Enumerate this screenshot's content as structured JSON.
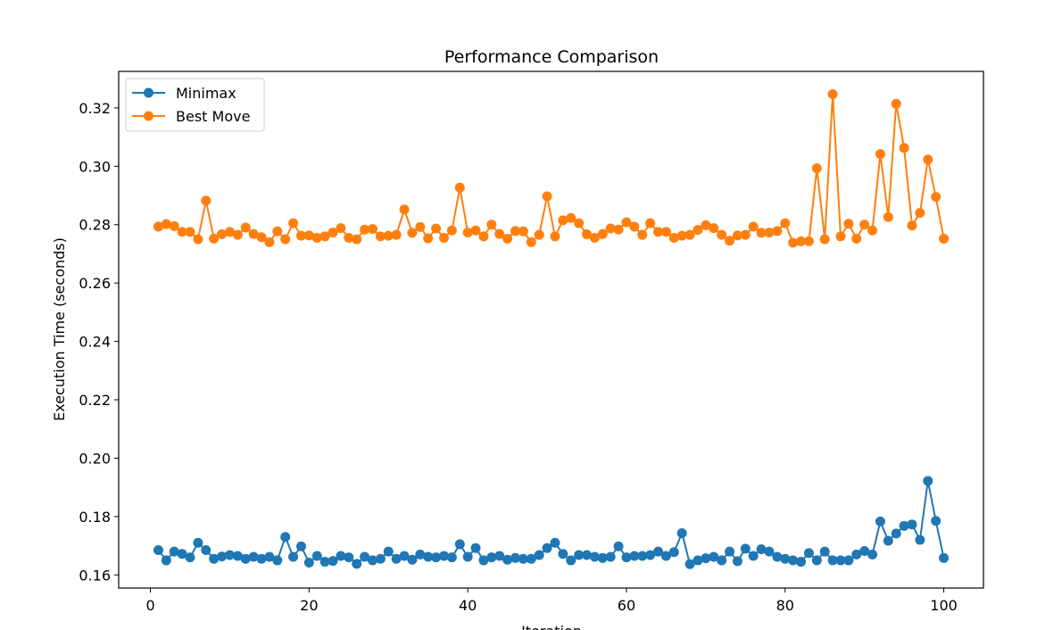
{
  "chart_data": {
    "type": "line",
    "title": "Performance Comparison",
    "xlabel": "Iteration",
    "ylabel": "Execution Time (seconds)",
    "xlim": [
      -4,
      105
    ],
    "ylim": [
      0.1555,
      0.3325
    ],
    "xticks": [
      0,
      20,
      40,
      60,
      80,
      100
    ],
    "yticks": [
      0.16,
      0.18,
      0.2,
      0.22,
      0.24,
      0.26,
      0.28,
      0.3,
      0.32
    ],
    "ytick_labels": [
      "0.16",
      "0.18",
      "0.20",
      "0.22",
      "0.24",
      "0.26",
      "0.28",
      "0.30",
      "0.32"
    ],
    "grid": false,
    "legend_position": "top-left",
    "x": [
      1,
      2,
      3,
      4,
      5,
      6,
      7,
      8,
      9,
      10,
      11,
      12,
      13,
      14,
      15,
      16,
      17,
      18,
      19,
      20,
      21,
      22,
      23,
      24,
      25,
      26,
      27,
      28,
      29,
      30,
      31,
      32,
      33,
      34,
      35,
      36,
      37,
      38,
      39,
      40,
      41,
      42,
      43,
      44,
      45,
      46,
      47,
      48,
      49,
      50,
      51,
      52,
      53,
      54,
      55,
      56,
      57,
      58,
      59,
      60,
      61,
      62,
      63,
      64,
      65,
      66,
      67,
      68,
      69,
      70,
      71,
      72,
      73,
      74,
      75,
      76,
      77,
      78,
      79,
      80,
      81,
      82,
      83,
      84,
      85,
      86,
      87,
      88,
      89,
      90,
      91,
      92,
      93,
      94,
      95,
      96,
      97,
      98,
      99,
      100
    ],
    "series": [
      {
        "name": "Minimax",
        "color": "#1f77b4",
        "values": [
          0.1685,
          0.165,
          0.168,
          0.1672,
          0.166,
          0.171,
          0.1685,
          0.1655,
          0.1663,
          0.1668,
          0.1665,
          0.1655,
          0.1662,
          0.1655,
          0.1662,
          0.165,
          0.173,
          0.1662,
          0.1698,
          0.1642,
          0.1665,
          0.1645,
          0.1648,
          0.1665,
          0.166,
          0.1638,
          0.1662,
          0.165,
          0.1655,
          0.168,
          0.1655,
          0.1665,
          0.1652,
          0.167,
          0.1662,
          0.166,
          0.1665,
          0.166,
          0.1705,
          0.1662,
          0.1692,
          0.165,
          0.166,
          0.1665,
          0.1652,
          0.1658,
          0.1655,
          0.1655,
          0.1668,
          0.1692,
          0.171,
          0.1672,
          0.165,
          0.1668,
          0.1668,
          0.1662,
          0.1658,
          0.1662,
          0.1698,
          0.166,
          0.1665,
          0.1665,
          0.1668,
          0.168,
          0.1665,
          0.1678,
          0.1743,
          0.1637,
          0.165,
          0.1657,
          0.1662,
          0.165,
          0.168,
          0.1647,
          0.169,
          0.1665,
          0.1688,
          0.168,
          0.1662,
          0.1655,
          0.165,
          0.1645,
          0.1675,
          0.165,
          0.168,
          0.165,
          0.165,
          0.165,
          0.167,
          0.1682,
          0.167,
          0.1783,
          0.1717,
          0.1742,
          0.1768,
          0.1773,
          0.172,
          0.1922,
          0.1785,
          0.1658
        ]
      },
      {
        "name": "Best Move",
        "color": "#ff7f0e",
        "values": [
          0.2793,
          0.2802,
          0.2795,
          0.2775,
          0.2775,
          0.275,
          0.2882,
          0.2752,
          0.2767,
          0.2775,
          0.2765,
          0.279,
          0.2768,
          0.2757,
          0.274,
          0.2777,
          0.275,
          0.2805,
          0.2762,
          0.2763,
          0.2755,
          0.276,
          0.2773,
          0.2788,
          0.2755,
          0.275,
          0.2783,
          0.2785,
          0.276,
          0.2762,
          0.2765,
          0.2852,
          0.2772,
          0.2792,
          0.2753,
          0.2787,
          0.2755,
          0.278,
          0.2927,
          0.2773,
          0.278,
          0.276,
          0.28,
          0.2768,
          0.2752,
          0.2778,
          0.2777,
          0.274,
          0.2765,
          0.2897,
          0.276,
          0.2815,
          0.2823,
          0.2805,
          0.2767,
          0.2755,
          0.2768,
          0.2787,
          0.2783,
          0.2808,
          0.2793,
          0.2765,
          0.2805,
          0.2775,
          0.2775,
          0.2755,
          0.2762,
          0.2765,
          0.2782,
          0.2798,
          0.2788,
          0.2765,
          0.2745,
          0.2763,
          0.2765,
          0.2793,
          0.2772,
          0.2773,
          0.2778,
          0.2805,
          0.2738,
          0.2743,
          0.2743,
          0.2993,
          0.275,
          0.3247,
          0.276,
          0.2803,
          0.2752,
          0.28,
          0.278,
          0.3042,
          0.2826,
          0.3214,
          0.3063,
          0.2797,
          0.284,
          0.3023,
          0.2895,
          0.2752
        ]
      }
    ]
  }
}
